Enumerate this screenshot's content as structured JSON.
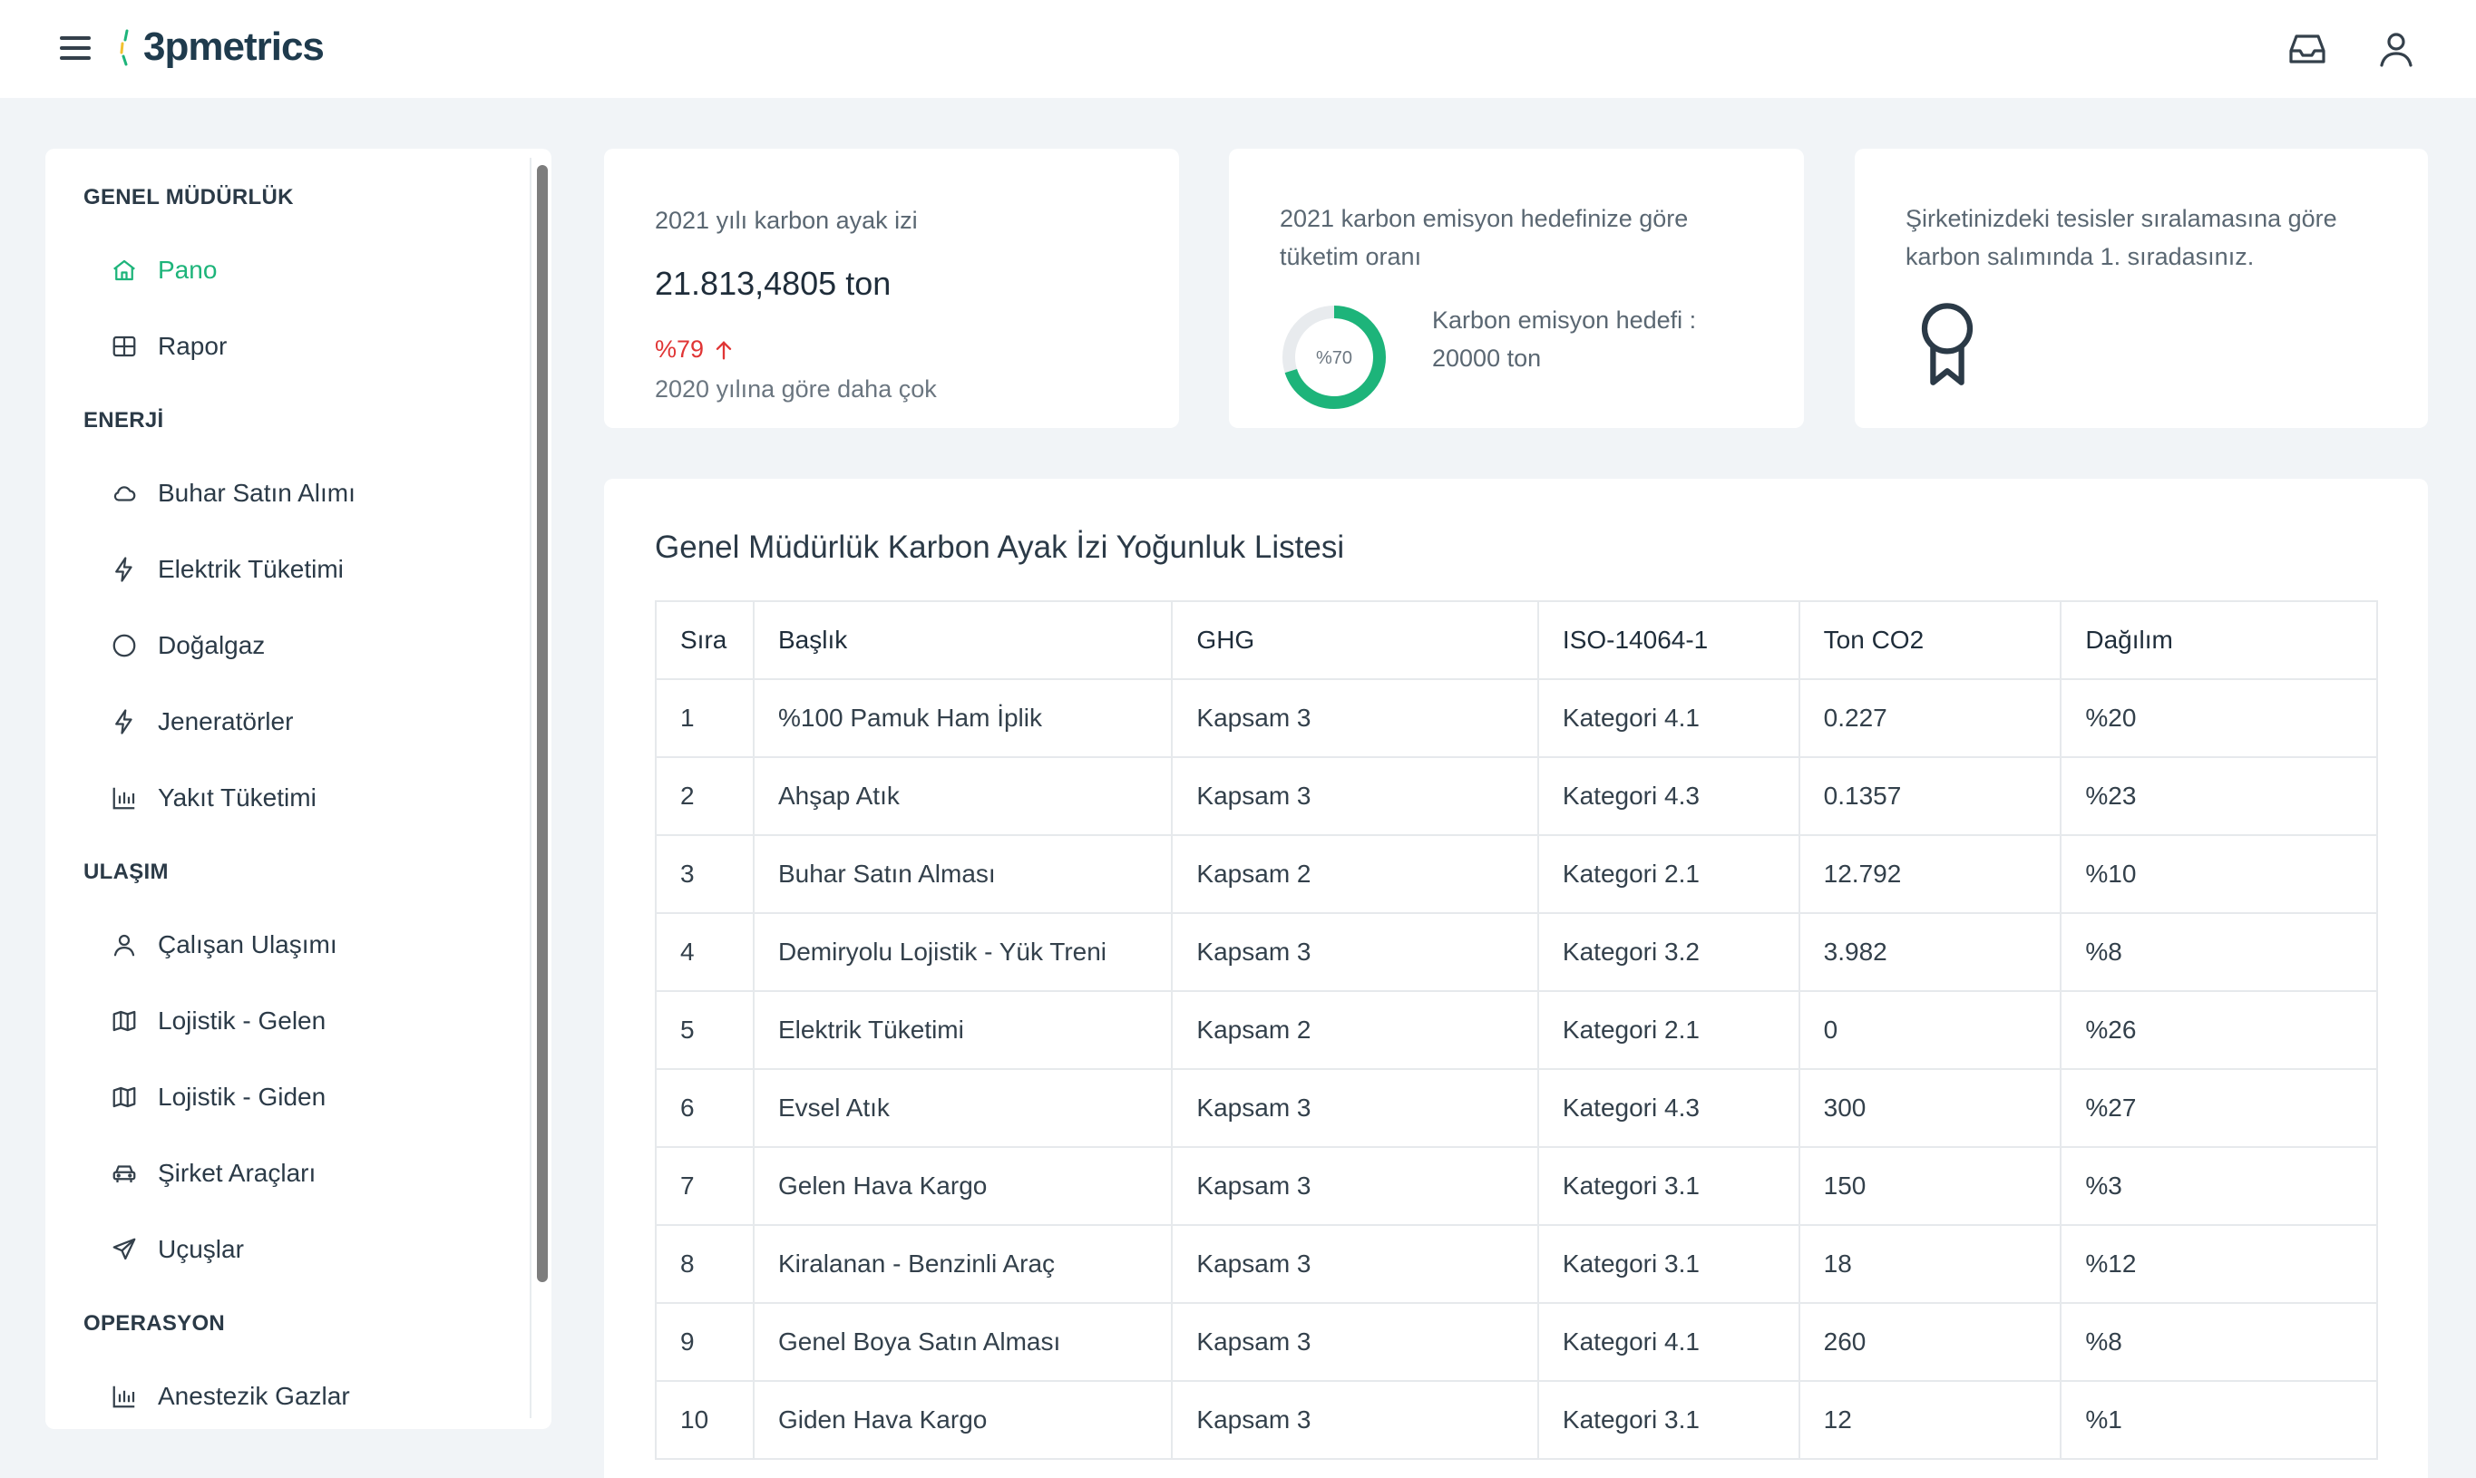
{
  "header": {
    "logo_text": "3pmetrics",
    "menu_icon": "hamburger-menu-icon",
    "inbox_icon": "inbox-icon",
    "user_icon": "user-icon"
  },
  "sidebar": {
    "sections": [
      {
        "title": "GENEL MÜDÜRLÜK",
        "items": [
          {
            "label": "Pano",
            "icon": "home-icon",
            "active": true
          },
          {
            "label": "Rapor",
            "icon": "grid-icon"
          }
        ]
      },
      {
        "title": "ENERJİ",
        "items": [
          {
            "label": "Buhar Satın Alımı",
            "icon": "cloud-icon"
          },
          {
            "label": "Elektrik Tüketimi",
            "icon": "bolt-icon"
          },
          {
            "label": "Doğalgaz",
            "icon": "circle-icon"
          },
          {
            "label": "Jeneratörler",
            "icon": "bolt-icon"
          },
          {
            "label": "Yakıt Tüketimi",
            "icon": "bar-chart-icon"
          }
        ]
      },
      {
        "title": "ULAŞIM",
        "items": [
          {
            "label": "Çalışan Ulaşımı",
            "icon": "user-icon"
          },
          {
            "label": "Lojistik - Gelen",
            "icon": "map-icon"
          },
          {
            "label": "Lojistik - Giden",
            "icon": "map-icon"
          },
          {
            "label": "Şirket Araçları",
            "icon": "car-icon"
          },
          {
            "label": "Uçuşlar",
            "icon": "send-icon"
          }
        ]
      },
      {
        "title": "OPERASYON",
        "items": [
          {
            "label": "Anestezik Gazlar",
            "icon": "bar-chart-icon"
          }
        ]
      }
    ]
  },
  "cards": {
    "footprint": {
      "label": "2021 yılı karbon ayak izi",
      "value": "21.813,4805 ton",
      "change": "%79",
      "change_icon": "arrow-up-icon",
      "comparison": "2020 yılına göre daha çok"
    },
    "target": {
      "label_line1": "2021 karbon emisyon hedefinize göre",
      "label_line2": "tüketim oranı",
      "donut_label": "%70",
      "donut_fraction": 0.7,
      "target_label": "Karbon emisyon hedefi :",
      "target_value": "20000 ton"
    },
    "ranking": {
      "text_line1": "Şirketinizdeki tesisler sıralamasına göre",
      "text_line2": "karbon salımında 1. sıradasınız.",
      "icon": "award-icon"
    }
  },
  "table": {
    "title": "Genel Müdürlük Karbon Ayak İzi Yoğunluk Listesi",
    "columns": [
      "Sıra",
      "Başlık",
      "GHG",
      "ISO-14064-1",
      "Ton CO2",
      "Dağılım"
    ],
    "rows": [
      [
        "1",
        "%100 Pamuk Ham İplik",
        "Kapsam 3",
        "Kategori 4.1",
        "0.227",
        "%20"
      ],
      [
        "2",
        "Ahşap Atık",
        "Kapsam 3",
        "Kategori 4.3",
        "0.1357",
        "%23"
      ],
      [
        "3",
        "Buhar Satın Alması",
        "Kapsam 2",
        "Kategori 2.1",
        "12.792",
        "%10"
      ],
      [
        "4",
        "Demiryolu Lojistik - Yük Treni",
        "Kapsam 3",
        "Kategori 3.2",
        "3.982",
        "%8"
      ],
      [
        "5",
        "Elektrik Tüketimi",
        "Kapsam 2",
        "Kategori 2.1",
        "0",
        "%26"
      ],
      [
        "6",
        "Evsel Atık",
        "Kapsam 3",
        "Kategori 4.3",
        "300",
        "%27"
      ],
      [
        "7",
        "Gelen Hava Kargo",
        "Kapsam 3",
        "Kategori 3.1",
        "150",
        "%3"
      ],
      [
        "8",
        "Kiralanan - Benzinli Araç",
        "Kapsam 3",
        "Kategori 3.1",
        "18",
        "%12"
      ],
      [
        "9",
        "Genel Boya Satın Alması",
        "Kapsam 3",
        "Kategori 4.1",
        "260",
        "%8"
      ],
      [
        "10",
        "Giden Hava Kargo",
        "Kapsam 3",
        "Kategori 3.1",
        "12",
        "%1"
      ]
    ]
  },
  "colors": {
    "accent": "#1db47a",
    "alert": "#e03535",
    "background": "#f1f4f7"
  }
}
